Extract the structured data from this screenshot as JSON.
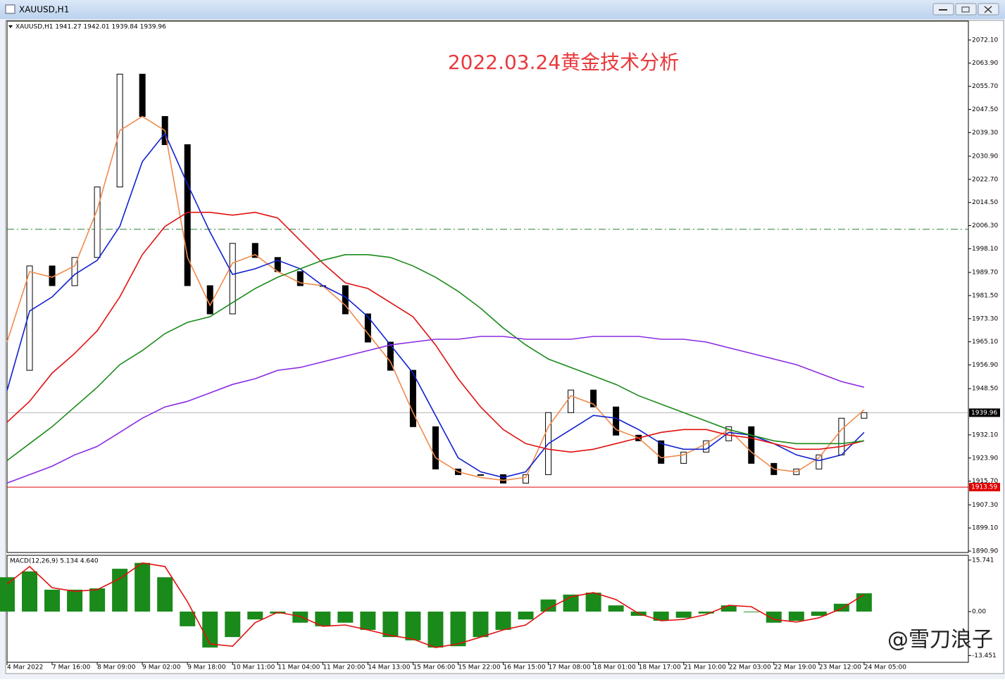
{
  "window": {
    "title": "XAUUSD,H1",
    "watermark": "@雪刀浪子"
  },
  "chart_data": [
    {
      "type": "candlestick",
      "header": "XAUUSD,H1  1941.27 1942.01 1939.84 1939.96",
      "annotation": "2022.03.24黄金技术分析",
      "xlim": [
        0,
        341
      ],
      "x": [
        0,
        8,
        16,
        24,
        32,
        40,
        48,
        56,
        64,
        72,
        80,
        88,
        96,
        104,
        112,
        120,
        128,
        136,
        144,
        152,
        160,
        168,
        176,
        184,
        192,
        200,
        208,
        216,
        224,
        232,
        240,
        248,
        256,
        264,
        272,
        280,
        288,
        296,
        304
      ],
      "close": [
        1955,
        1992,
        1985,
        1995,
        2020,
        2060,
        2045,
        2035,
        1985,
        1975,
        2000,
        1995,
        1990,
        1985,
        1985,
        1975,
        1965,
        1955,
        1935,
        1920,
        1918,
        1918,
        1915,
        1918,
        1940,
        1948,
        1942,
        1932,
        1930,
        1922,
        1926,
        1930,
        1935,
        1922,
        1918,
        1920,
        1925,
        1938,
        1940
      ],
      "ylim": [
        1890.4,
        2078.8
      ],
      "yticks": [
        {
          "value": 2072.1,
          "label": "2072.10"
        },
        {
          "value": 2063.9,
          "label": "2063.90"
        },
        {
          "value": 2055.7,
          "label": "2055.70"
        },
        {
          "value": 2047.5,
          "label": "2047.50"
        },
        {
          "value": 2039.3,
          "label": "2039.30"
        },
        {
          "value": 2030.9,
          "label": "2030.90"
        },
        {
          "value": 2022.7,
          "label": "2022.70"
        },
        {
          "value": 2014.5,
          "label": "2014.50"
        },
        {
          "value": 2006.3,
          "label": "2006.30"
        },
        {
          "value": 1998.1,
          "label": "1998.10"
        },
        {
          "value": 1989.7,
          "label": "1989.70"
        },
        {
          "value": 1981.5,
          "label": "1981.50"
        },
        {
          "value": 1973.3,
          "label": "1973.30"
        },
        {
          "value": 1965.1,
          "label": "1965.10"
        },
        {
          "value": 1956.9,
          "label": "1956.90"
        },
        {
          "value": 1948.5,
          "label": "1948.50"
        },
        {
          "value": 1932.1,
          "label": "1932.10"
        },
        {
          "value": 1923.9,
          "label": "1923.90"
        },
        {
          "value": 1915.7,
          "label": "1915.70"
        },
        {
          "value": 1907.3,
          "label": "1907.30"
        },
        {
          "value": 1899.1,
          "label": "1899.10"
        },
        {
          "value": 1890.9,
          "label": "1890.90"
        }
      ],
      "hlines": [
        {
          "value": 2005,
          "color": "#2e7d32",
          "dash": "10 4 2 4"
        },
        {
          "value": 1939.96,
          "color": "#b5b5b5",
          "label_bg": "#000000"
        },
        {
          "value": 1913.59,
          "color": "#e00000",
          "label_bg": "#e00000"
        }
      ],
      "series": [
        {
          "color": "#f08a4b",
          "values": [
            1965,
            1990,
            1988,
            1992,
            2012,
            2040,
            2045,
            2040,
            1995,
            1978,
            1993,
            1996,
            1990,
            1986,
            1985,
            1978,
            1968,
            1958,
            1940,
            1924,
            1919,
            1917,
            1916,
            1917,
            1935,
            1946,
            1943,
            1934,
            1931,
            1924,
            1925,
            1929,
            1934,
            1926,
            1920,
            1919,
            1924,
            1934,
            1941
          ]
        },
        {
          "color": "#1020d0",
          "values": [
            1947.8,
            1976,
            1981,
            1989,
            1994,
            2006,
            2029,
            2039,
            2021,
            2004,
            1989,
            1991,
            1994,
            1991,
            1985,
            1981,
            1974,
            1964,
            1954,
            1939,
            1924,
            1919,
            1917,
            1919,
            1929,
            1934,
            1939,
            1938,
            1934,
            1929,
            1927,
            1927,
            1933,
            1932,
            1929,
            1925,
            1923,
            1925,
            1933
          ]
        },
        {
          "color": "#e01010",
          "values": [
            1936.6,
            1944,
            1954,
            1961,
            1969,
            1981,
            1996,
            2006,
            2011,
            2011,
            2010,
            2011,
            2009,
            2001,
            1993,
            1986,
            1984,
            1979,
            1974,
            1964,
            1952,
            1942,
            1934,
            1929,
            1927,
            1926,
            1927,
            1929,
            1931,
            1933,
            1934,
            1934,
            1932,
            1931,
            1929,
            1927,
            1927,
            1928,
            1930
          ]
        },
        {
          "color": "#1a8a1a",
          "values": [
            1923,
            1929,
            1935,
            1942,
            1949,
            1957,
            1962,
            1968,
            1972,
            1974,
            1979,
            1984,
            1988,
            1991,
            1994,
            1996,
            1996,
            1995,
            1992,
            1988,
            1983,
            1977,
            1970,
            1964,
            1959,
            1956,
            1953,
            1950,
            1946,
            1943,
            1940,
            1937,
            1934,
            1932,
            1930,
            1929,
            1929,
            1929,
            1930
          ]
        },
        {
          "color": "#8a2be2",
          "values": [
            1915,
            1918,
            1921,
            1925,
            1928,
            1933,
            1938,
            1942,
            1944,
            1947,
            1950,
            1952,
            1955,
            1956,
            1958,
            1960,
            1962,
            1964,
            1965,
            1966,
            1966,
            1967,
            1967,
            1966,
            1966,
            1966,
            1967,
            1967,
            1967,
            1966,
            1966,
            1965,
            1963,
            1961,
            1959,
            1957,
            1954,
            1951,
            1949
          ]
        }
      ]
    },
    {
      "type": "macd",
      "label": "MACD(12,26,9) 5.134 4.640",
      "xlim": [
        0,
        341
      ],
      "x": [
        0,
        8,
        16,
        24,
        32,
        40,
        48,
        56,
        64,
        72,
        80,
        88,
        96,
        104,
        112,
        120,
        128,
        136,
        144,
        152,
        160,
        168,
        176,
        184,
        192,
        200,
        208,
        216,
        224,
        232,
        240,
        248,
        256,
        264,
        272,
        280,
        288,
        296,
        304
      ],
      "xticks": [
        {
          "value": 0,
          "label": "4 Mar 2022"
        },
        {
          "value": 16,
          "label": "7 Mar 16:00"
        },
        {
          "value": 32,
          "label": "8 Mar 09:00"
        },
        {
          "value": 48,
          "label": "9 Mar 02:00"
        },
        {
          "value": 64,
          "label": "9 Mar 18:00"
        },
        {
          "value": 80,
          "label": "10 Mar 11:00"
        },
        {
          "value": 96,
          "label": "11 Mar 04:00"
        },
        {
          "value": 112,
          "label": "11 Mar 20:00"
        },
        {
          "value": 128,
          "label": "14 Mar 13:00"
        },
        {
          "value": 144,
          "label": "15 Mar 06:00"
        },
        {
          "value": 160,
          "label": "15 Mar 22:00"
        },
        {
          "value": 176,
          "label": "16 Mar 15:00"
        },
        {
          "value": 192,
          "label": "17 Mar 08:00"
        },
        {
          "value": 208,
          "label": "18 Mar 01:00"
        },
        {
          "value": 224,
          "label": "18 Mar 17:00"
        },
        {
          "value": 240,
          "label": "21 Mar 10:00"
        },
        {
          "value": 256,
          "label": "22 Mar 03:00"
        },
        {
          "value": 272,
          "label": "22 Mar 19:00"
        },
        {
          "value": 288,
          "label": "23 Mar 12:00"
        },
        {
          "value": 304,
          "label": "24 Mar 05:00"
        }
      ],
      "ylim": [
        -15.3,
        17.0
      ],
      "yticks": [
        15.741,
        {
          "value": 0,
          "label": "0.00"
        },
        -13.451
      ],
      "histogram": {
        "color": "#1a8a1a",
        "values": [
          10.5,
          12.3,
          6.7,
          6.7,
          7.1,
          13.1,
          14.9,
          10.5,
          -4.5,
          -11,
          -7.8,
          -2.4,
          -0.6,
          -3.4,
          -4.5,
          -3.4,
          -5.6,
          -7.8,
          -8.8,
          -11,
          -10.6,
          -7.8,
          -5.6,
          -2.4,
          3.7,
          5.2,
          5.8,
          1.9,
          -1.3,
          -2.8,
          -1.9,
          -0.6,
          1.9,
          -0.2,
          -3.4,
          -2.8,
          -1.3,
          2.4,
          5.6
        ]
      },
      "signal": {
        "color": "#e01010",
        "values": [
          8.4,
          13.8,
          7.3,
          6.2,
          6.7,
          10.1,
          14.9,
          13.8,
          3,
          -9.9,
          -10.6,
          -3.4,
          -0.2,
          -1.5,
          -4.5,
          -4.1,
          -5.6,
          -7.3,
          -8.4,
          -11,
          -9.9,
          -7.8,
          -5.6,
          -4.1,
          0.9,
          4.5,
          5.8,
          3.7,
          -0.6,
          -2.8,
          -2.4,
          -0.9,
          1.9,
          1.5,
          -2.4,
          -3.2,
          -1.9,
          0.9,
          5.2
        ]
      }
    }
  ]
}
